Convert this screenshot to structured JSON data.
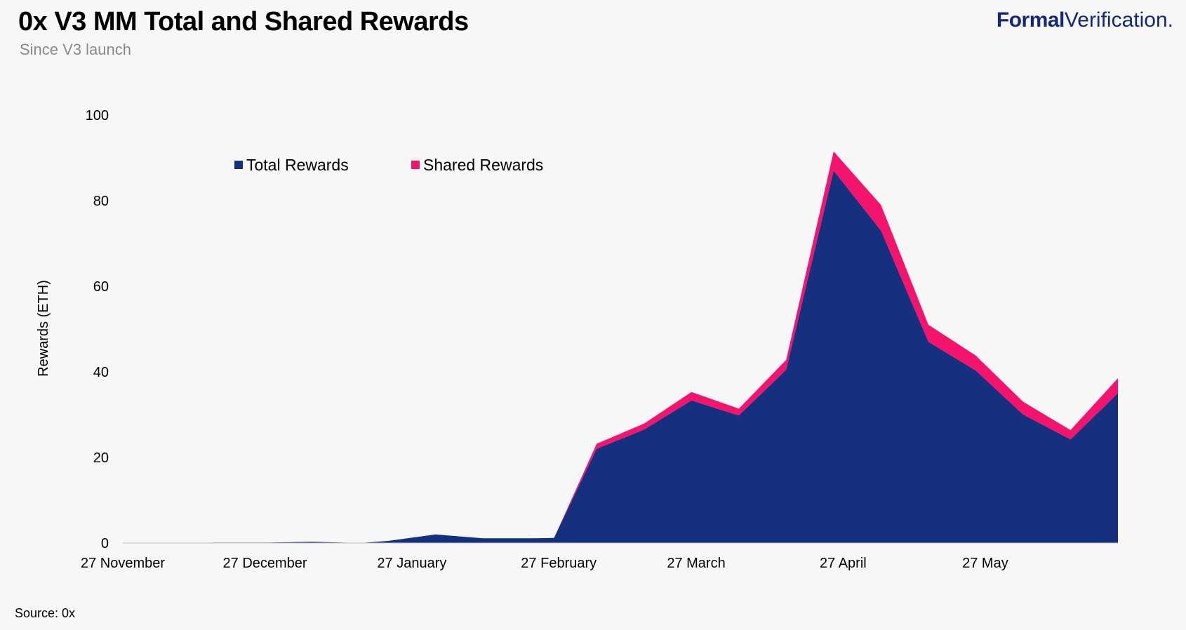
{
  "header": {
    "title": "0x V3 MM Total and Shared Rewards",
    "subtitle": "Since V3 launch"
  },
  "brand": {
    "strong": "Formal",
    "light": "Verification."
  },
  "footer": {
    "source": "Source: 0x"
  },
  "colors": {
    "total": "#15307f",
    "shared": "#f5146d",
    "background": "#f7f7f7"
  },
  "chart_data": {
    "type": "area",
    "stacked": true,
    "title": "0x V3 MM Total and Shared Rewards",
    "subtitle": "Since V3 launch",
    "xlabel": "",
    "ylabel": "Rewards (ETH)",
    "ylim": [
      0,
      100
    ],
    "yticks": [
      0,
      20,
      40,
      60,
      80,
      100
    ],
    "xlim": [
      "2019-11-27",
      "2020-06-24"
    ],
    "xticks": [
      {
        "date": "2019-11-27",
        "label": "27 November"
      },
      {
        "date": "2019-12-27",
        "label": "27 December"
      },
      {
        "date": "2020-01-27",
        "label": "27 January"
      },
      {
        "date": "2020-02-27",
        "label": "27 February"
      },
      {
        "date": "2020-03-27",
        "label": "27 March"
      },
      {
        "date": "2020-04-27",
        "label": "27 April"
      },
      {
        "date": "2020-05-27",
        "label": "27 May"
      }
    ],
    "legend_position": "top-left",
    "x": [
      "2019-11-27",
      "2019-12-07",
      "2019-12-17",
      "2019-12-27",
      "2020-01-06",
      "2020-01-16",
      "2020-01-22",
      "2020-02-01",
      "2020-02-11",
      "2020-02-21",
      "2020-02-26",
      "2020-03-06",
      "2020-03-16",
      "2020-03-26",
      "2020-04-05",
      "2020-04-15",
      "2020-04-25",
      "2020-05-05",
      "2020-05-15",
      "2020-05-25",
      "2020-06-04",
      "2020-06-14",
      "2020-06-24"
    ],
    "series": [
      {
        "name": "Total Rewards",
        "values": [
          0,
          0,
          0.1,
          0.1,
          0.3,
          0.0,
          0.5,
          2.0,
          1.1,
          1.1,
          1.2,
          22.0,
          26.5,
          33.3,
          29.8,
          40.5,
          87.0,
          73.0,
          47.0,
          40.3,
          30.0,
          24.2,
          35.0
        ]
      },
      {
        "name": "Shared Rewards",
        "values": [
          0,
          0,
          0,
          0,
          0,
          0,
          0,
          0,
          0,
          0,
          0,
          1.2,
          1.4,
          2.0,
          1.6,
          2.3,
          4.5,
          6.0,
          4.0,
          3.5,
          3.0,
          2.2,
          3.5
        ]
      }
    ]
  }
}
